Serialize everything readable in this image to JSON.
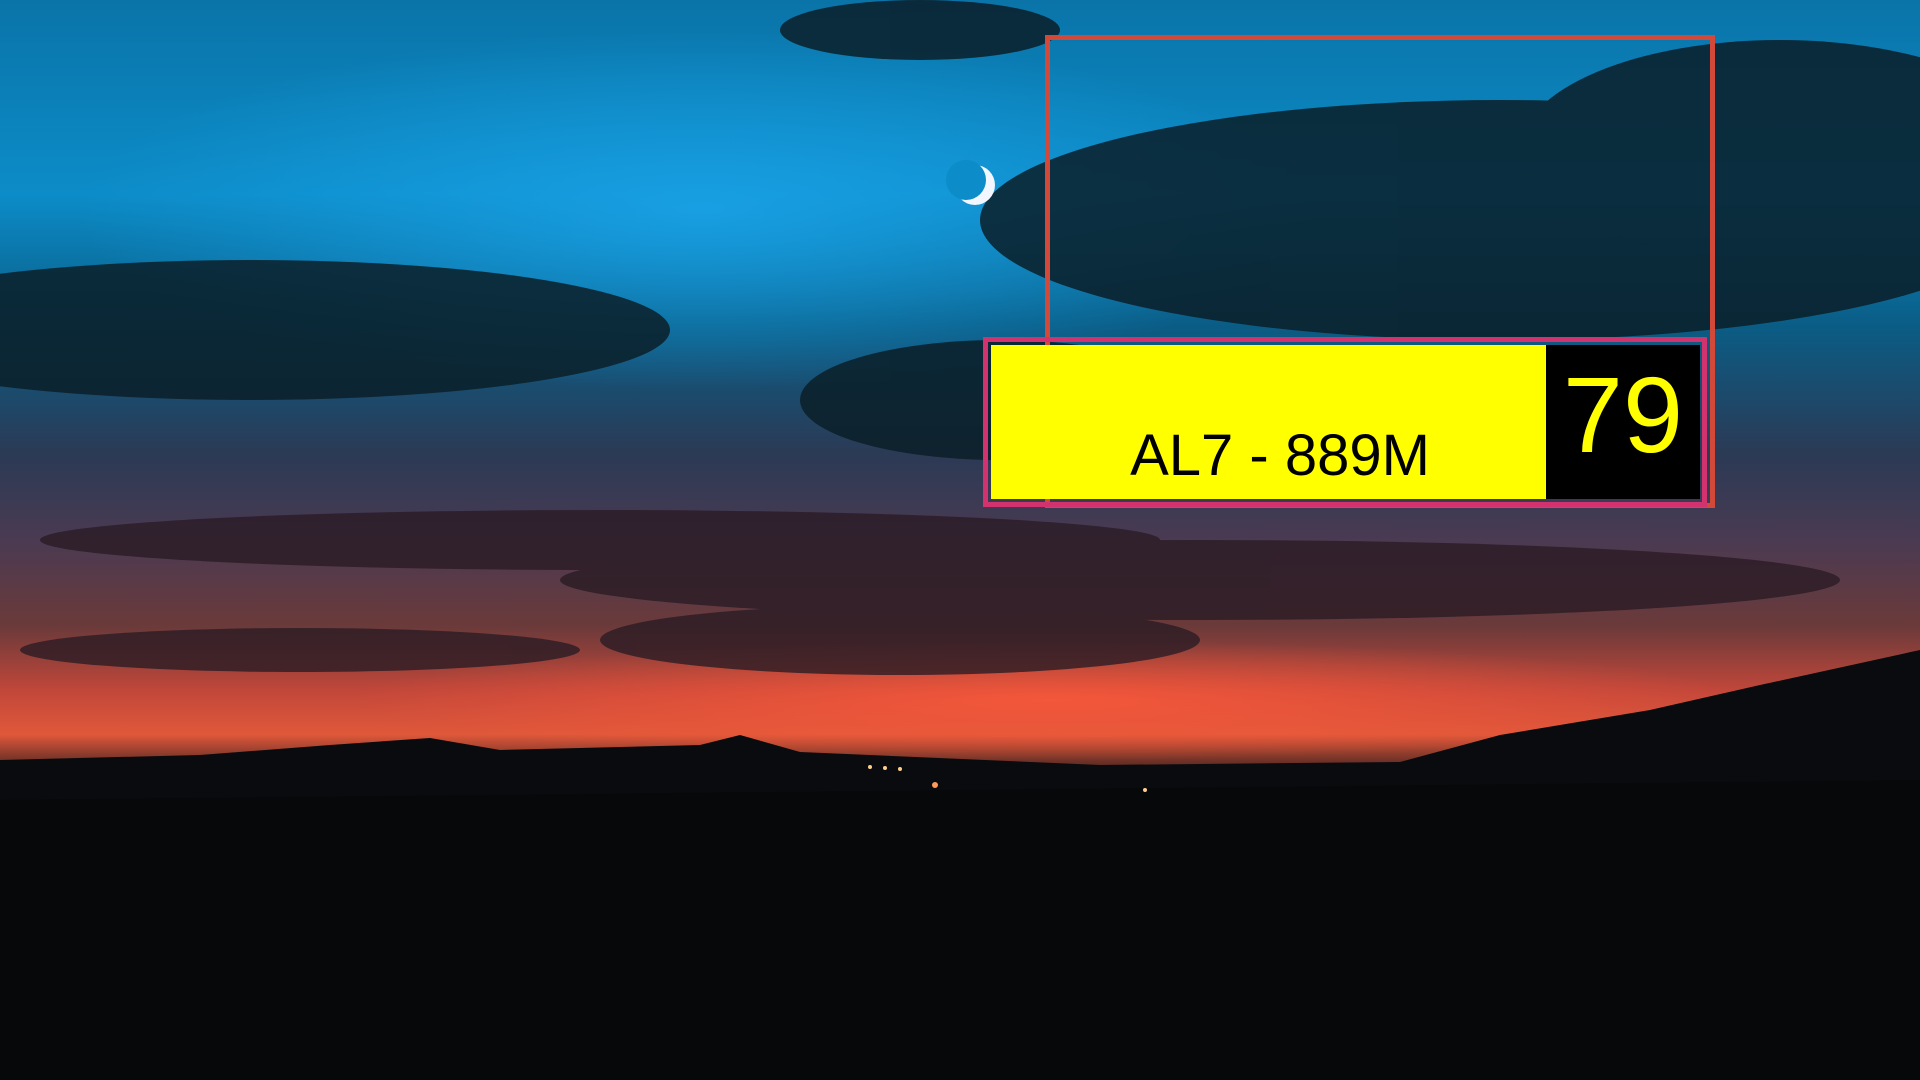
{
  "scene": {
    "subject": "dusk-sky-landscape",
    "moon": "crescent-moon"
  },
  "plate": {
    "text": "AL7 - 889M",
    "number": "79"
  },
  "colors": {
    "outline_box": "#d2493a",
    "plate_frame": "#d2336e",
    "plate_background": "#ffff00",
    "number_background": "#000000",
    "number_text": "#ffff00",
    "plate_text": "#000000"
  }
}
